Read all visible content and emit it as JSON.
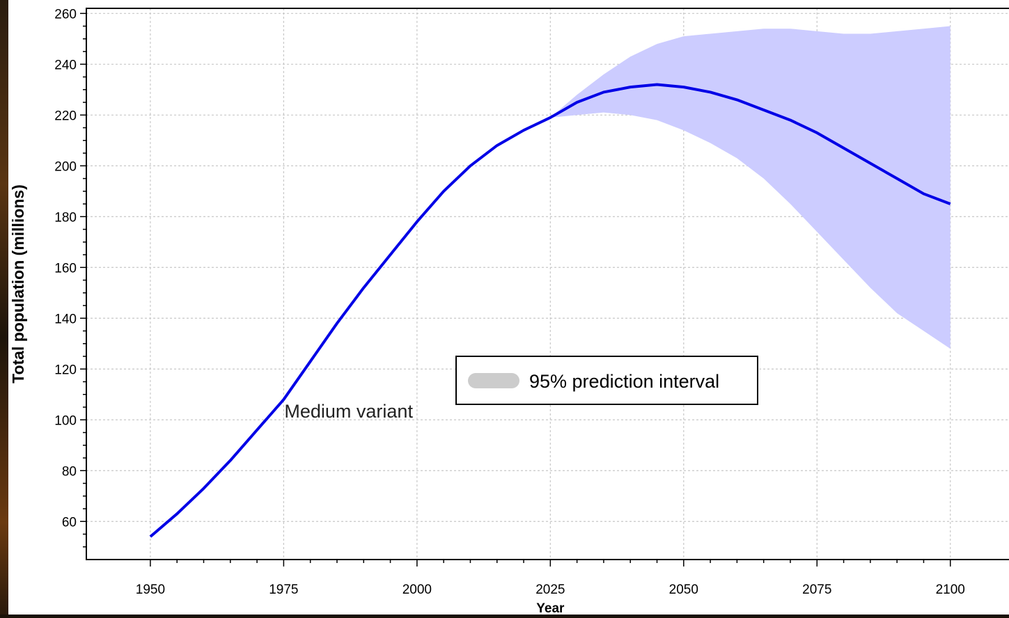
{
  "chart_data": {
    "type": "line",
    "title": "",
    "xlabel": "Year",
    "ylabel": "Total population (millions)",
    "xlim": [
      1938,
      2111
    ],
    "ylim": [
      45,
      262
    ],
    "x_ticks": [
      1950,
      1975,
      2000,
      2025,
      2050,
      2075,
      2100
    ],
    "y_ticks": [
      60,
      80,
      100,
      120,
      140,
      160,
      180,
      200,
      220,
      240,
      260
    ],
    "grid": true,
    "series": [
      {
        "name": "Medium variant",
        "color": "#0000e6",
        "x": [
          1950,
          1955,
          1960,
          1965,
          1970,
          1975,
          1980,
          1985,
          1990,
          1995,
          2000,
          2005,
          2010,
          2015,
          2020,
          2025,
          2030,
          2035,
          2040,
          2045,
          2050,
          2055,
          2060,
          2065,
          2070,
          2075,
          2080,
          2085,
          2090,
          2095,
          2100
        ],
        "y": [
          54,
          63,
          73,
          84,
          96,
          108,
          123,
          138,
          152,
          165,
          178,
          190,
          200,
          208,
          214,
          219,
          225,
          229,
          231,
          232,
          231,
          229,
          226,
          222,
          218,
          213,
          207,
          201,
          195,
          189,
          185
        ]
      }
    ],
    "interval": {
      "name": "95% prediction interval",
      "color": "#ccccff",
      "legend_swatch_color": "#cccccc",
      "x": [
        2025,
        2030,
        2035,
        2040,
        2045,
        2050,
        2055,
        2060,
        2065,
        2070,
        2075,
        2080,
        2085,
        2090,
        2095,
        2100
      ],
      "lower": [
        219,
        220,
        221,
        220,
        218,
        214,
        209,
        203,
        195,
        185,
        174,
        163,
        152,
        142,
        135,
        128
      ],
      "upper": [
        219,
        228,
        236,
        243,
        248,
        251,
        252,
        253,
        254,
        254,
        253,
        252,
        252,
        253,
        254,
        255
      ]
    },
    "annotations": [
      {
        "text": "Medium variant",
        "x": 1975,
        "y": 102
      }
    ],
    "legend": {
      "placement": "center",
      "entries": [
        "95% prediction interval"
      ]
    }
  }
}
